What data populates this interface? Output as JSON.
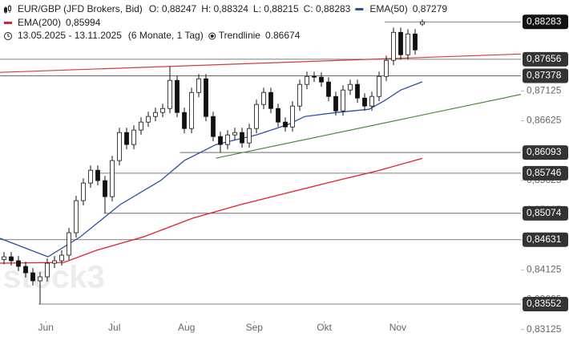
{
  "chart_data": {
    "type": "candlestick",
    "title": "EUR/GBP (JFD Brokers, Bid)",
    "ohlc_labels": [
      "O: 0,88247",
      "H: 0,88324",
      "L: 0,88215",
      "C: 0,88283"
    ],
    "period": "13.05.2025 - 13.11.2025",
    "period_note": "(6 Monate, 1 Tag)",
    "watermark": "stock3",
    "open": [
      0.843,
      0.84345,
      0.84278,
      0.84184,
      0.84076,
      0.83942,
      0.84009,
      0.84237,
      0.84278,
      0.84372,
      0.84748,
      0.85286,
      0.85581,
      0.85796,
      0.85622,
      0.85353,
      0.85958,
      0.86428,
      0.86227,
      0.86469,
      0.86603,
      0.86697,
      0.86764,
      0.86831,
      0.87302,
      0.86764,
      0.86495,
      0.871,
      0.87329,
      0.86697,
      0.86361,
      0.86227,
      0.86388,
      0.86428,
      0.86254,
      0.86495,
      0.86899,
      0.871,
      0.86831,
      0.86603,
      0.86522,
      0.86872,
      0.87235,
      0.87369,
      0.87356,
      0.87275,
      0.87033,
      0.86791,
      0.87141,
      0.87235,
      0.87006,
      0.86872,
      0.87033,
      0.87369,
      0.87638,
      0.88108,
      0.87732,
      0.88081,
      0.88247
    ],
    "high": [
      0.84425,
      0.84425,
      0.84358,
      0.84264,
      0.84156,
      0.84089,
      0.84317,
      0.84358,
      0.84452,
      0.84828,
      0.85366,
      0.85661,
      0.85876,
      0.85876,
      0.85702,
      0.86038,
      0.86508,
      0.86508,
      0.86549,
      0.86683,
      0.86777,
      0.86844,
      0.86911,
      0.8753,
      0.87382,
      0.86844,
      0.8718,
      0.87409,
      0.87409,
      0.86777,
      0.86441,
      0.86468,
      0.86508,
      0.86508,
      0.86575,
      0.86979,
      0.8718,
      0.8718,
      0.86911,
      0.86683,
      0.86952,
      0.87315,
      0.87449,
      0.87449,
      0.87436,
      0.87355,
      0.87113,
      0.87221,
      0.87315,
      0.87315,
      0.87086,
      0.87113,
      0.87449,
      0.87718,
      0.88188,
      0.88188,
      0.88161,
      0.88161,
      0.88324
    ],
    "low": [
      0.8422,
      0.84198,
      0.84104,
      0.83996,
      0.83862,
      0.83552,
      0.83929,
      0.84157,
      0.84198,
      0.84292,
      0.84668,
      0.85206,
      0.85501,
      0.85542,
      0.85074,
      0.85273,
      0.85878,
      0.86147,
      0.86147,
      0.86389,
      0.86523,
      0.86617,
      0.86684,
      0.86751,
      0.86684,
      0.86415,
      0.86415,
      0.8702,
      0.86617,
      0.86281,
      0.86093,
      0.86147,
      0.86308,
      0.86174,
      0.86174,
      0.86415,
      0.86819,
      0.86751,
      0.86523,
      0.86442,
      0.86442,
      0.86792,
      0.87155,
      0.87276,
      0.87195,
      0.86953,
      0.86711,
      0.86711,
      0.87061,
      0.86926,
      0.86792,
      0.86792,
      0.86953,
      0.87289,
      0.87558,
      0.87652,
      0.87652,
      0.87733,
      0.88215
    ],
    "close": [
      0.84345,
      0.84278,
      0.84184,
      0.84076,
      0.83942,
      0.84009,
      0.84237,
      0.84278,
      0.84372,
      0.84748,
      0.85286,
      0.85581,
      0.85796,
      0.85622,
      0.85353,
      0.85958,
      0.86428,
      0.86227,
      0.86469,
      0.86603,
      0.86697,
      0.86764,
      0.86831,
      0.87302,
      0.86764,
      0.86495,
      0.871,
      0.87329,
      0.86697,
      0.86361,
      0.86227,
      0.86388,
      0.86428,
      0.86254,
      0.86495,
      0.86899,
      0.871,
      0.86831,
      0.86603,
      0.86522,
      0.86872,
      0.87235,
      0.87369,
      0.87356,
      0.87275,
      0.87033,
      0.86791,
      0.87141,
      0.87235,
      0.87006,
      0.86872,
      0.87033,
      0.87369,
      0.87638,
      0.88108,
      0.87732,
      0.88081,
      0.87813,
      0.88283
    ],
    "xlim": [
      -0.556,
      71.667
    ],
    "xticks": [
      {
        "value": 5.8,
        "label": "Jun"
      },
      {
        "value": 15.3,
        "label": "Jul"
      },
      {
        "value": 25.3,
        "label": "Aug"
      },
      {
        "value": 34.7,
        "label": "Sep"
      },
      {
        "value": 44.4,
        "label": "Okt"
      },
      {
        "value": 54.6,
        "label": "Nov"
      }
    ],
    "ylim": [
      0.83,
      0.8865
    ],
    "yticks": [
      {
        "value": 0.87125,
        "label": "0,87125"
      },
      {
        "value": 0.86625,
        "label": "0,86625"
      },
      {
        "value": 0.86125,
        "label": "0,86125"
      },
      {
        "value": 0.85625,
        "label": "0,85625"
      },
      {
        "value": 0.85125,
        "label": "0,85125"
      },
      {
        "value": 0.84625,
        "label": "0,84625"
      },
      {
        "value": 0.84125,
        "label": "0,84125"
      },
      {
        "value": 0.83625,
        "label": "0,83625"
      },
      {
        "value": 0.83125,
        "label": "0,83125"
      }
    ],
    "series": [
      {
        "name": "EMA(50)",
        "value_label": "0,87279",
        "color": "#2e4fa3",
        "x": [
          -0.556,
          6.1,
          10.6,
          16.1,
          21.7,
          25,
          29.4,
          35,
          39.4,
          41.7,
          46.1,
          50.6,
          52.8,
          55,
          58
        ],
        "values": [
          0.84654,
          0.84345,
          0.84681,
          0.85219,
          0.85622,
          0.85958,
          0.86227,
          0.86388,
          0.86563,
          0.86697,
          0.86764,
          0.86818,
          0.86966,
          0.87141,
          0.87279
        ]
      },
      {
        "name": "EMA(200)",
        "value_label": "0,85994",
        "color": "#e0202a",
        "x": [
          -0.556,
          8.3,
          12.8,
          19.4,
          26.1,
          32.8,
          39.4,
          46.1,
          51.7,
          58
        ],
        "values": [
          0.84237,
          0.8425,
          0.84453,
          0.84681,
          0.8499,
          0.85219,
          0.8542,
          0.85622,
          0.85783,
          0.85994
        ]
      }
    ],
    "trendlines": [
      {
        "name": "Trendlinie",
        "value_label": "0.86674",
        "color": "#4a8a3a",
        "x": [
          29.4,
          78.3
        ],
        "values": [
          0.85998,
          0.87235
        ]
      },
      {
        "color": "#d43a3a",
        "x": [
          -0.556,
          71.667
        ],
        "values": [
          0.87436,
          0.87745
        ]
      }
    ],
    "levels": [
      {
        "value": 0.88283,
        "label": "0,88283",
        "from": 52.8
      },
      {
        "value": 0.87656,
        "label": "0,87656",
        "from": -0.556
      },
      {
        "value": 0.87378,
        "label": "0,87378",
        "from": -0.556
      },
      {
        "value": 0.86093,
        "label": "0,86093",
        "from": 24.4
      },
      {
        "value": 0.85746,
        "label": "0,85746",
        "from": 12.6
      },
      {
        "value": 0.85074,
        "label": "0,85074",
        "from": 13.9
      },
      {
        "value": 0.84631,
        "label": "0,84631",
        "from": -0.556
      },
      {
        "value": 0.83552,
        "label": "0,83552",
        "from": 4.8
      }
    ]
  }
}
